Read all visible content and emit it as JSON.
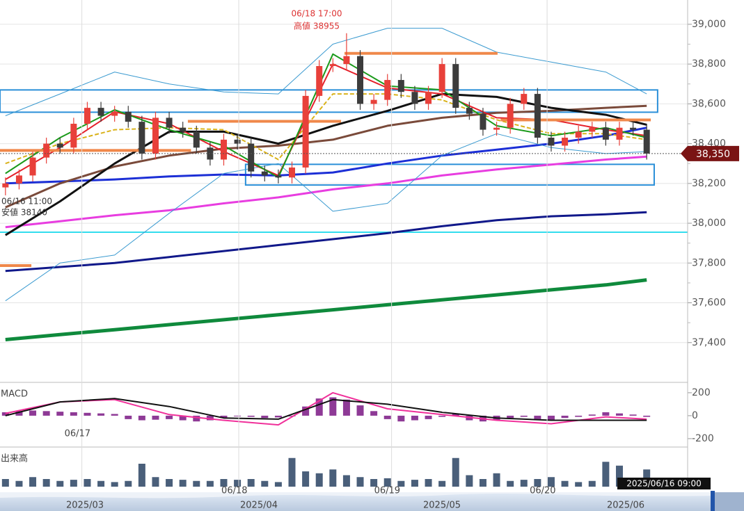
{
  "chart_data": {
    "type": "candlestick",
    "xlim": [
      -0.4,
      50
    ],
    "ylim": [
      37200,
      39122
    ],
    "yticks": [
      {
        "value": 37400,
        "label": "37,400"
      },
      {
        "value": 37600,
        "label": "37,600"
      },
      {
        "value": 37800,
        "label": "37,800"
      },
      {
        "value": 38000,
        "label": "38,000"
      },
      {
        "value": 38200,
        "label": "38,200"
      },
      {
        "value": 38400,
        "label": "38,400"
      },
      {
        "value": 38600,
        "label": "38,600"
      },
      {
        "value": 38800,
        "label": "38,800"
      },
      {
        "value": 39000,
        "label": "39,000"
      }
    ],
    "xticks": [
      {
        "value": 5.6,
        "label": "06/17"
      },
      {
        "value": 17.1,
        "label": "06/18"
      },
      {
        "value": 28.3,
        "label": "06/19"
      },
      {
        "value": 39.7,
        "label": "06/20"
      }
    ],
    "grid": true,
    "candles": {
      "up_color": "#e8403a",
      "down_color": "#3c3c3c",
      "open": [
        38180,
        38200,
        38240,
        38330,
        38400,
        38380,
        38500,
        38580,
        38540,
        38560,
        38510,
        38350,
        38530,
        38480,
        38460,
        38380,
        38320,
        38420,
        38400,
        38260,
        38240,
        38230,
        38280,
        38640,
        38790,
        38800,
        38840,
        38600,
        38620,
        38720,
        38660,
        38600,
        38660,
        38800,
        38580,
        38550,
        38470,
        38480,
        38600,
        38650,
        38430,
        38390,
        38430,
        38460,
        38480,
        38420,
        38480,
        38470
      ],
      "high": [
        38230,
        38270,
        38360,
        38430,
        38430,
        38530,
        38610,
        38610,
        38590,
        38590,
        38540,
        38560,
        38560,
        38510,
        38490,
        38410,
        38450,
        38450,
        38430,
        38290,
        38270,
        38310,
        38670,
        38820,
        38830,
        38955,
        38870,
        38650,
        38750,
        38750,
        38690,
        38690,
        38830,
        38830,
        38610,
        38580,
        38510,
        38630,
        38680,
        38680,
        38460,
        38460,
        38490,
        38510,
        38510,
        38510,
        38510,
        38500
      ],
      "low": [
        38140,
        38170,
        38210,
        38300,
        38350,
        38350,
        38470,
        38510,
        38510,
        38480,
        38320,
        38320,
        38450,
        38430,
        38350,
        38290,
        38290,
        38370,
        38230,
        38210,
        38200,
        38200,
        38250,
        38610,
        38760,
        38770,
        38570,
        38570,
        38590,
        38630,
        38570,
        38570,
        38630,
        38550,
        38520,
        38440,
        38440,
        38450,
        38570,
        38400,
        38360,
        38360,
        38400,
        38430,
        38390,
        38390,
        38440,
        38320
      ],
      "close": [
        38200,
        38240,
        38330,
        38400,
        38380,
        38500,
        38580,
        38540,
        38560,
        38510,
        38350,
        38530,
        38480,
        38460,
        38380,
        38320,
        38420,
        38400,
        38260,
        38240,
        38230,
        38280,
        38640,
        38790,
        38800,
        38840,
        38600,
        38620,
        38720,
        38660,
        38600,
        38660,
        38800,
        38580,
        38550,
        38470,
        38480,
        38600,
        38650,
        38430,
        38390,
        38430,
        38460,
        38480,
        38420,
        38480,
        38470,
        38350
      ]
    },
    "line_x": [
      0,
      4,
      8,
      12,
      16,
      20,
      24,
      28,
      32,
      36,
      40,
      44,
      47
    ],
    "series": [
      {
        "color": "#0f8a3c",
        "width": 5,
        "values": [
          37415,
          37440,
          37465,
          37490,
          37515,
          37540,
          37565,
          37590,
          37615,
          37640,
          37665,
          37690,
          37715
        ]
      },
      {
        "color": "#10188a",
        "width": 3,
        "values": [
          37760,
          37780,
          37800,
          37830,
          37860,
          37890,
          37920,
          37950,
          37985,
          38015,
          38035,
          38045,
          38055
        ]
      },
      {
        "color": "#e83de0",
        "width": 3,
        "values": [
          37980,
          38010,
          38040,
          38065,
          38100,
          38130,
          38170,
          38200,
          38240,
          38270,
          38295,
          38320,
          38335
        ]
      },
      {
        "color": "#1c2fd6",
        "width": 3,
        "values": [
          38200,
          38210,
          38220,
          38235,
          38245,
          38240,
          38255,
          38300,
          38340,
          38370,
          38400,
          38440,
          38480
        ]
      },
      {
        "color": "#7a4a3a",
        "width": 3,
        "values": [
          38080,
          38200,
          38285,
          38340,
          38375,
          38390,
          38420,
          38490,
          38530,
          38555,
          38565,
          38580,
          38590
        ]
      },
      {
        "color": "#3a9ad0",
        "width": 1,
        "values": [
          38540,
          38650,
          38760,
          38700,
          38660,
          38650,
          38900,
          38980,
          38980,
          38860,
          38810,
          38760,
          38650
        ]
      },
      {
        "color": "#3a9ad0",
        "width": 1,
        "values": [
          37610,
          37800,
          37840,
          38050,
          38250,
          38300,
          38060,
          38100,
          38340,
          38450,
          38380,
          38350,
          38360
        ]
      },
      {
        "color": "#111111",
        "width": 3,
        "values": [
          37940,
          38110,
          38300,
          38460,
          38460,
          38400,
          38490,
          38565,
          38650,
          38635,
          38580,
          38545,
          38495
        ]
      },
      {
        "color": "#d9b21a",
        "width": 2,
        "dash": "6 3",
        "values": [
          38300,
          38400,
          38470,
          38480,
          38470,
          38320,
          38650,
          38650,
          38620,
          38520,
          38450,
          38450,
          38420
        ]
      },
      {
        "color": "#e5202a",
        "width": 2,
        "values": [
          38220,
          38380,
          38560,
          38500,
          38360,
          38240,
          38800,
          38680,
          38650,
          38530,
          38520,
          38470,
          38440
        ]
      },
      {
        "color": "#1a9a1a",
        "width": 2,
        "values": [
          38250,
          38430,
          38570,
          38470,
          38390,
          38230,
          38850,
          38690,
          38670,
          38490,
          38440,
          38480,
          38430
        ]
      }
    ],
    "levels": [
      {
        "value": 37955,
        "color": "#33ddee"
      }
    ],
    "zones": [
      {
        "top": 38670,
        "bottom": 38558,
        "start": -0.4,
        "end": 47.8,
        "color": "#2a8fd8"
      },
      {
        "top": 38296,
        "bottom": 38192,
        "start": 17.6,
        "end": 47.55,
        "color": "#2a8fd8"
      }
    ],
    "resistance": [
      {
        "value": 38854,
        "start": 24.85,
        "end": 36.07,
        "color": "#f0884a"
      },
      {
        "value": 38512,
        "start": 13.37,
        "end": 24.6,
        "color": "#f0884a"
      },
      {
        "value": 38366,
        "start": -0.4,
        "end": 13.6,
        "color": "#f0884a"
      },
      {
        "value": 37787,
        "start": -0.4,
        "end": 1.9,
        "color": "#f0884a"
      },
      {
        "value": 38519,
        "start": 36.3,
        "end": 47.3,
        "color": "#f0884a"
      }
    ],
    "annotations": [
      {
        "text": "06/18 17:00"
      },
      {
        "text": "高値 38955"
      },
      {
        "text": "06/16 11:00"
      },
      {
        "text": "安値 38140"
      }
    ],
    "last_price": {
      "value": 38350,
      "label": "38,350"
    },
    "macd": {
      "title": "MACD",
      "ylim": [
        -255,
        260
      ],
      "yticks": [
        200,
        0,
        -200
      ],
      "hist_color": "#8e3a96",
      "hist": [
        30,
        40,
        45,
        40,
        35,
        30,
        25,
        20,
        15,
        -30,
        -40,
        -35,
        -30,
        -40,
        -50,
        -40,
        -20,
        -5,
        -10,
        -20,
        -15,
        0,
        80,
        150,
        160,
        140,
        90,
        40,
        -30,
        -50,
        -40,
        -30,
        -10,
        20,
        -40,
        -50,
        -40,
        -20,
        -10,
        -30,
        -40,
        -20,
        -10,
        10,
        30,
        20,
        10,
        -10
      ],
      "series": [
        {
          "color": "#f0309a",
          "values": [
            20,
            120,
            140,
            10,
            -40,
            -80,
            200,
            60,
            10,
            -40,
            -70,
            -10,
            -30
          ]
        },
        {
          "color": "#111111",
          "values": [
            0,
            120,
            150,
            80,
            -20,
            -30,
            140,
            100,
            30,
            -20,
            -40,
            -40,
            -40
          ]
        }
      ]
    },
    "volume": {
      "title": "出来高",
      "ylim": [
        0,
        100
      ],
      "color": "#4a5f7a",
      "values": [
        20,
        15,
        25,
        20,
        15,
        18,
        20,
        15,
        12,
        15,
        60,
        25,
        20,
        18,
        15,
        15,
        20,
        18,
        20,
        15,
        12,
        75,
        40,
        35,
        45,
        30,
        25,
        20,
        22,
        15,
        18,
        20,
        15,
        75,
        30,
        20,
        35,
        15,
        18,
        20,
        25,
        15,
        12,
        15,
        65,
        55,
        20,
        45
      ]
    },
    "crosshair_label": "2025/06/16 09:00",
    "navigator_labels": [
      "2025/03",
      "2025/04",
      "2025/05",
      "2025/06"
    ]
  }
}
